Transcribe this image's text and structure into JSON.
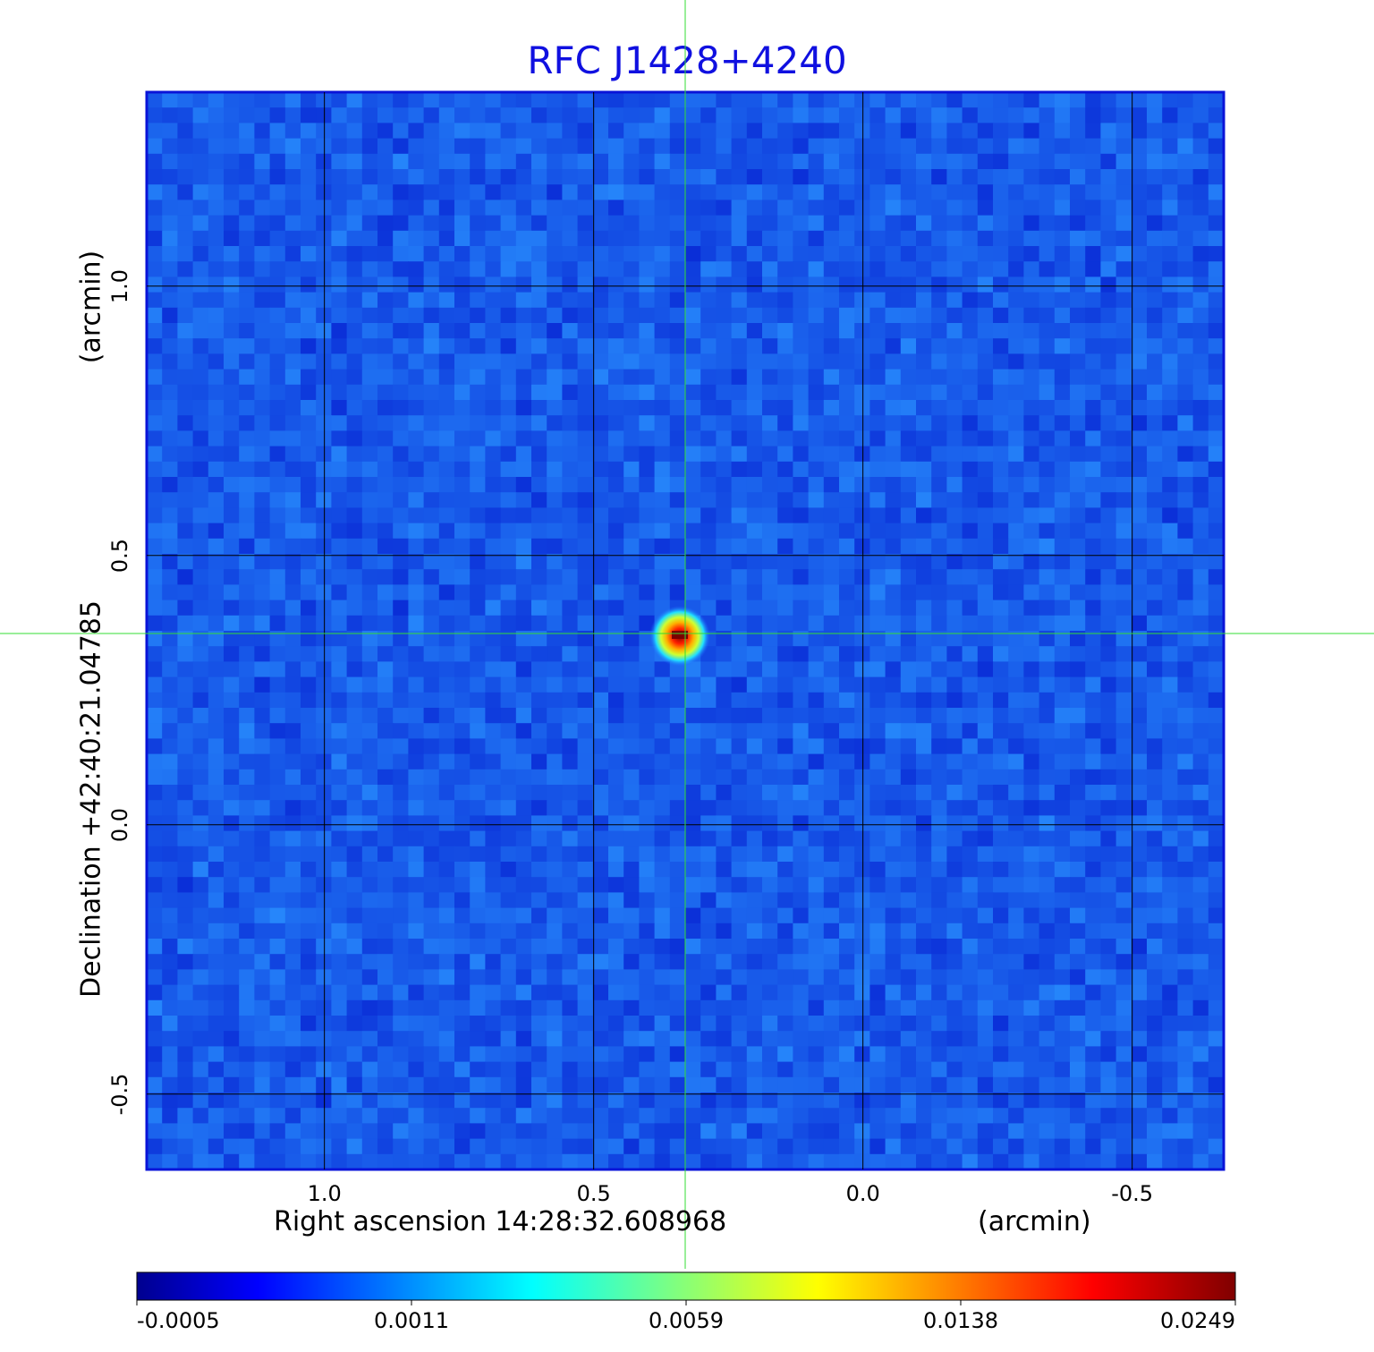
{
  "chart_data": {
    "type": "heatmap",
    "title": "RFC J1428+4240",
    "xlabel": "Right ascension  14:28:32.608968",
    "xunit": "(arcmin)",
    "ylabel": "Declination  +42:40:21.04785",
    "yunit": "(arcmin)",
    "x_ticks": [
      "1.0",
      "0.5",
      "0.0",
      "-0.5"
    ],
    "y_ticks": [
      "1.0",
      "0.5",
      "0.0",
      "-0.5"
    ],
    "xlim": [
      1.33,
      -0.67
    ],
    "ylim": [
      -0.64,
      1.36
    ],
    "grid": true,
    "crosshair": {
      "x": 0.33,
      "y": 0.355
    },
    "source": {
      "x": 0.34,
      "y": 0.35,
      "peak": 0.0249
    },
    "colorscale": "jet",
    "colorbar_ticks": [
      "-0.0005",
      "0.0011",
      "0.0059",
      "0.0138",
      "0.0249"
    ],
    "value_range": [
      -0.0005,
      0.0249
    ]
  }
}
